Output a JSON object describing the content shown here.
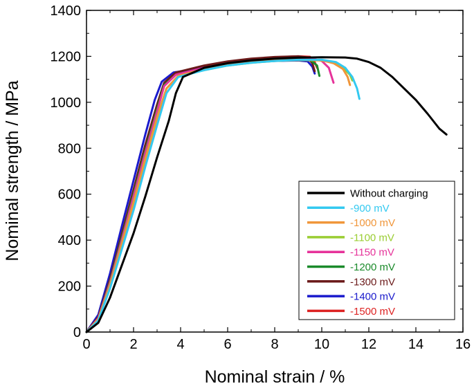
{
  "chart_data": {
    "type": "line",
    "title": "",
    "xlabel": "Nominal strain / %",
    "ylabel": "Nominal strength / MPa",
    "xlim": [
      0,
      16
    ],
    "ylim": [
      0,
      1400
    ],
    "xticks": [
      0,
      2,
      4,
      6,
      8,
      10,
      12,
      14,
      16
    ],
    "yticks": [
      0,
      200,
      400,
      600,
      800,
      1000,
      1200,
      1400
    ],
    "grid": false,
    "legend_placement": "lower-right",
    "series": [
      {
        "name": "Without charging",
        "color": "#000000",
        "label_color": "#000000",
        "x": [
          0,
          0.5,
          1.0,
          1.5,
          2.0,
          2.5,
          3.0,
          3.5,
          3.8,
          4.1,
          5,
          6,
          7,
          8,
          9,
          10,
          11,
          11.5,
          12,
          12.5,
          13,
          13.5,
          14,
          14.5,
          15,
          15.3
        ],
        "y": [
          0,
          40,
          150,
          290,
          430,
          590,
          760,
          920,
          1040,
          1110,
          1150,
          1170,
          1182,
          1190,
          1194,
          1196,
          1195,
          1190,
          1175,
          1150,
          1110,
          1060,
          1010,
          950,
          885,
          860
        ]
      },
      {
        "name": "-900 mV",
        "color": "#33c9f0",
        "label_color": "#33c9f0",
        "x": [
          0,
          0.5,
          1.0,
          1.5,
          2.0,
          2.5,
          3.0,
          3.4,
          3.9,
          5,
          6,
          7,
          8,
          9,
          10,
          10.6,
          11,
          11.3,
          11.5,
          11.6
        ],
        "y": [
          0,
          50,
          190,
          360,
          530,
          720,
          900,
          1040,
          1110,
          1140,
          1160,
          1172,
          1180,
          1185,
          1185,
          1175,
          1150,
          1110,
          1060,
          1015
        ]
      },
      {
        "name": "-1000 mV",
        "color": "#f0963a",
        "label_color": "#f0963a",
        "x": [
          0,
          0.5,
          1.0,
          1.5,
          2.0,
          2.5,
          3.0,
          3.4,
          3.9,
          5,
          6,
          7,
          8,
          9,
          10,
          10.5,
          10.9,
          11.1,
          11.2
        ],
        "y": [
          0,
          55,
          200,
          380,
          560,
          750,
          930,
          1060,
          1115,
          1145,
          1163,
          1175,
          1182,
          1186,
          1183,
          1170,
          1145,
          1110,
          1075
        ]
      },
      {
        "name": "-1100 mV",
        "color": "#9acd32",
        "label_color": "#9acd32",
        "x": [
          0,
          0.5,
          1.0,
          1.5,
          2.0,
          2.5,
          3.0,
          3.4,
          3.9,
          5,
          6,
          7,
          8,
          9,
          10,
          10.5,
          10.9,
          11.2,
          11.3
        ],
        "y": [
          0,
          55,
          205,
          385,
          565,
          755,
          935,
          1060,
          1115,
          1140,
          1160,
          1172,
          1180,
          1184,
          1182,
          1172,
          1150,
          1120,
          1095
        ]
      },
      {
        "name": "-1150 mV",
        "color": "#e6339a",
        "label_color": "#e6339a",
        "x": [
          0,
          0.5,
          1.0,
          1.5,
          2.0,
          2.5,
          3.0,
          3.3,
          3.8,
          5,
          6,
          7,
          8,
          9,
          9.6,
          10,
          10.3,
          10.5
        ],
        "y": [
          0,
          60,
          215,
          400,
          590,
          780,
          960,
          1070,
          1120,
          1150,
          1168,
          1180,
          1188,
          1192,
          1190,
          1180,
          1150,
          1085
        ]
      },
      {
        "name": "-1200 mV",
        "color": "#1a8a2a",
        "label_color": "#1a8a2a",
        "x": [
          0,
          0.5,
          1.0,
          1.5,
          2.0,
          2.5,
          3.0,
          3.3,
          3.8,
          5,
          6,
          7,
          8,
          9,
          9.5,
          9.8,
          9.9
        ],
        "y": [
          0,
          60,
          220,
          410,
          600,
          790,
          970,
          1075,
          1120,
          1145,
          1162,
          1175,
          1183,
          1188,
          1185,
          1160,
          1115
        ]
      },
      {
        "name": "-1300 mV",
        "color": "#6b1a1a",
        "label_color": "#6b1a1a",
        "x": [
          0,
          0.5,
          1.0,
          1.5,
          2.0,
          2.5,
          3.0,
          3.3,
          3.8,
          5,
          6,
          7,
          8,
          9,
          9.4,
          9.6,
          9.7
        ],
        "y": [
          0,
          65,
          230,
          425,
          620,
          815,
          990,
          1085,
          1130,
          1160,
          1178,
          1190,
          1197,
          1200,
          1195,
          1170,
          1135
        ]
      },
      {
        "name": "-1400 mV",
        "color": "#1a1acc",
        "label_color": "#1a1acc",
        "x": [
          0,
          0.5,
          1.0,
          1.5,
          2.0,
          2.5,
          2.9,
          3.2,
          3.7,
          5,
          6,
          7,
          8,
          9,
          9.4,
          9.6,
          9.7
        ],
        "y": [
          0,
          75,
          255,
          460,
          660,
          860,
          1010,
          1090,
          1130,
          1150,
          1165,
          1175,
          1180,
          1182,
          1178,
          1155,
          1125
        ]
      },
      {
        "name": "-1500 mV",
        "color": "#dd2222",
        "label_color": "#dd2222",
        "x": [
          0,
          0.5,
          1.0,
          1.5,
          2.0,
          2.5,
          3.0,
          3.3,
          3.8,
          5,
          6,
          7,
          8,
          9,
          9.5,
          9.7,
          9.8
        ],
        "y": [
          0,
          65,
          225,
          415,
          605,
          800,
          975,
          1080,
          1125,
          1155,
          1175,
          1188,
          1196,
          1200,
          1198,
          1175,
          1150
        ]
      }
    ]
  }
}
